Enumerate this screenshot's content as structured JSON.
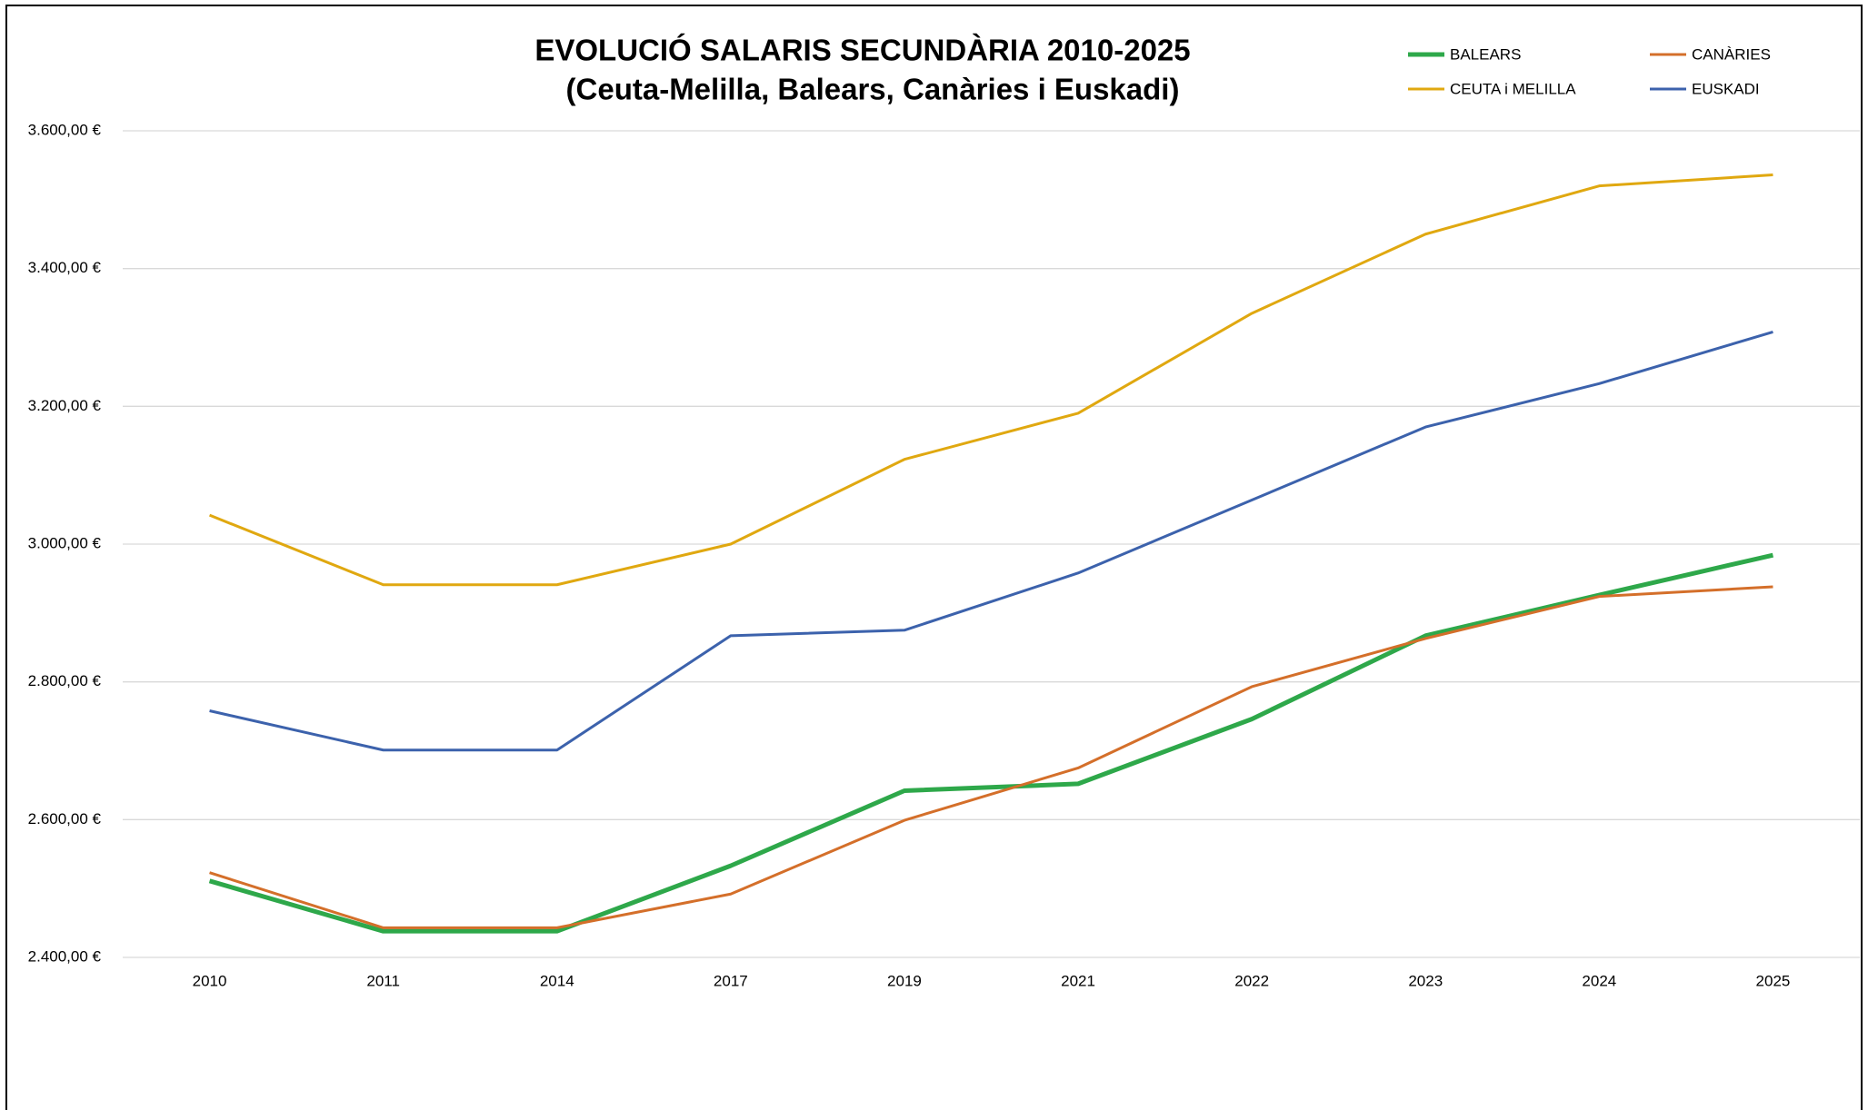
{
  "chart_data": {
    "type": "line",
    "title": "EVOLUCIÓ SALARIS SECUNDÀRIA 2010-2025",
    "subtitle": "(Ceuta-Melilla, Balears, Canàries i Euskadi)",
    "categories": [
      "2010",
      "2011",
      "2014",
      "2017",
      "2019",
      "2021",
      "2022",
      "2023",
      "2024",
      "2025"
    ],
    "series": [
      {
        "name": "BALEARS",
        "color": "#2ea84a",
        "values": [
          2511,
          2438,
          2438,
          2533,
          2642,
          2652,
          2746,
          2867,
          2926,
          2984
        ]
      },
      {
        "name": "CANÀRIES",
        "color": "#d46f2a",
        "values": [
          2523,
          2443,
          2443,
          2492,
          2599,
          2675,
          2793,
          2863,
          2924,
          2938
        ]
      },
      {
        "name": "CEUTA i MELILLA",
        "color": "#e0a810",
        "values": [
          3042,
          2941,
          2941,
          3000,
          3123,
          3190,
          3335,
          3450,
          3520,
          3536
        ]
      },
      {
        "name": "EUSKADI",
        "color": "#3c62ac",
        "values": [
          2758,
          2701,
          2701,
          2867,
          2875,
          2958,
          3064,
          3170,
          3233,
          3308
        ]
      }
    ],
    "ylim": [
      2400,
      3600
    ],
    "yticks": [
      {
        "value": 2400,
        "label": "2.400,00 €"
      },
      {
        "value": 2600,
        "label": "2.600,00 €"
      },
      {
        "value": 2800,
        "label": "2.800,00 €"
      },
      {
        "value": 3000,
        "label": "3.000,00 €"
      },
      {
        "value": 3200,
        "label": "3.200,00 €"
      },
      {
        "value": 3400,
        "label": "3.400,00 €"
      },
      {
        "value": 3600,
        "label": "3.600,00 €"
      }
    ],
    "grid": true,
    "legend": "top-right"
  }
}
